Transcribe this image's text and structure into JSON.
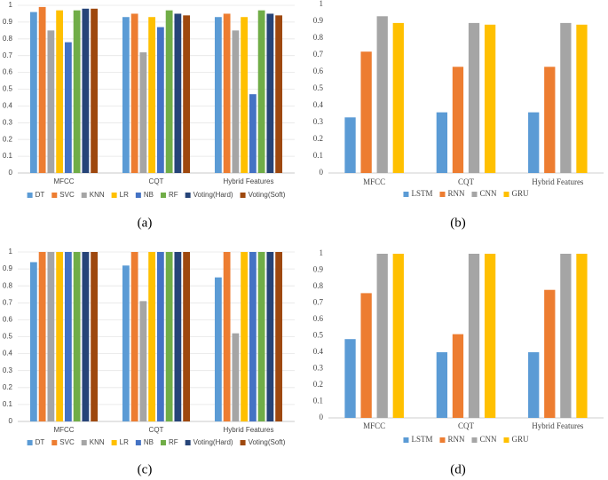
{
  "chart_data": [
    {
      "type": "bar",
      "caption": "(a)",
      "categories": [
        "MFCC",
        "CQT",
        "Hybrid Features"
      ],
      "series": [
        {
          "name": "DT",
          "color": "#5b9bd5",
          "values": [
            0.96,
            0.93,
            0.93
          ]
        },
        {
          "name": "SVC",
          "color": "#ed7d31",
          "values": [
            0.99,
            0.95,
            0.95
          ]
        },
        {
          "name": "KNN",
          "color": "#a5a5a5",
          "values": [
            0.85,
            0.72,
            0.85
          ]
        },
        {
          "name": "LR",
          "color": "#ffc000",
          "values": [
            0.97,
            0.93,
            0.93
          ]
        },
        {
          "name": "NB",
          "color": "#4472c4",
          "values": [
            0.78,
            0.87,
            0.47
          ]
        },
        {
          "name": "RF",
          "color": "#70ad47",
          "values": [
            0.97,
            0.97,
            0.97
          ]
        },
        {
          "name": "Voting(Hard)",
          "color": "#264478",
          "values": [
            0.98,
            0.95,
            0.95
          ]
        },
        {
          "name": "Voting(Soft)",
          "color": "#9e480e",
          "values": [
            0.98,
            0.94,
            0.94
          ]
        }
      ],
      "ylim": [
        0,
        1
      ],
      "yticks": [
        0,
        0.1,
        0.2,
        0.3,
        0.4,
        0.5,
        0.6,
        0.7,
        0.8,
        0.9,
        1
      ],
      "grid": true
    },
    {
      "type": "bar",
      "caption": "(b)",
      "categories": [
        "MFCC",
        "CQT",
        "Hybrid Features"
      ],
      "series": [
        {
          "name": "LSTM",
          "color": "#5b9bd5",
          "values": [
            0.33,
            0.36,
            0.36
          ]
        },
        {
          "name": "RNN",
          "color": "#ed7d31",
          "values": [
            0.72,
            0.63,
            0.63
          ]
        },
        {
          "name": "CNN",
          "color": "#a5a5a5",
          "values": [
            0.93,
            0.89,
            0.89
          ]
        },
        {
          "name": "GRU",
          "color": "#ffc000",
          "values": [
            0.89,
            0.88,
            0.88
          ]
        }
      ],
      "ylim": [
        0,
        1
      ],
      "yticks": [
        0,
        0.1,
        0.2,
        0.3,
        0.4,
        0.5,
        0.6,
        0.7,
        0.8,
        0.9,
        1
      ],
      "grid": false
    },
    {
      "type": "bar",
      "caption": "(c)",
      "categories": [
        "MFCC",
        "CQT",
        "Hybrid Features"
      ],
      "series": [
        {
          "name": "DT",
          "color": "#5b9bd5",
          "values": [
            0.94,
            0.92,
            0.85
          ]
        },
        {
          "name": "SVC",
          "color": "#ed7d31",
          "values": [
            1,
            1,
            1
          ]
        },
        {
          "name": "KNN",
          "color": "#a5a5a5",
          "values": [
            1,
            0.71,
            0.52
          ]
        },
        {
          "name": "LR",
          "color": "#ffc000",
          "values": [
            1,
            1,
            1
          ]
        },
        {
          "name": "NB",
          "color": "#4472c4",
          "values": [
            1,
            1,
            1
          ]
        },
        {
          "name": "RF",
          "color": "#70ad47",
          "values": [
            1,
            1,
            1
          ]
        },
        {
          "name": "Voting(Hard)",
          "color": "#264478",
          "values": [
            1,
            1,
            1
          ]
        },
        {
          "name": "Voting(Soft)",
          "color": "#9e480e",
          "values": [
            1,
            1,
            1
          ]
        }
      ],
      "ylim": [
        0,
        1
      ],
      "yticks": [
        0,
        0.1,
        0.2,
        0.3,
        0.4,
        0.5,
        0.6,
        0.7,
        0.8,
        0.9,
        1
      ],
      "grid": true
    },
    {
      "type": "bar",
      "caption": "(d)",
      "categories": [
        "MFCC",
        "CQT",
        "Hybrid Features"
      ],
      "series": [
        {
          "name": "LSTM",
          "color": "#5b9bd5",
          "values": [
            0.48,
            0.4,
            0.4
          ]
        },
        {
          "name": "RNN",
          "color": "#ed7d31",
          "values": [
            0.76,
            0.51,
            0.78
          ]
        },
        {
          "name": "CNN",
          "color": "#a5a5a5",
          "values": [
            1,
            1,
            1
          ]
        },
        {
          "name": "GRU",
          "color": "#ffc000",
          "values": [
            1,
            1,
            1
          ]
        }
      ],
      "ylim": [
        0,
        1
      ],
      "yticks": [
        0,
        0.1,
        0.2,
        0.3,
        0.4,
        0.5,
        0.6,
        0.7,
        0.8,
        0.9,
        1
      ],
      "grid": false
    }
  ]
}
